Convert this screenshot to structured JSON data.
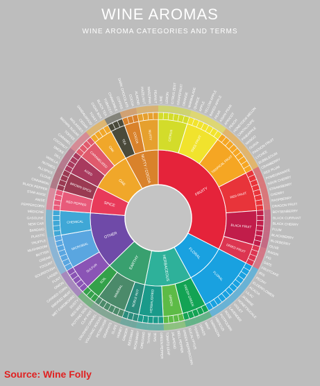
{
  "title": "WINE AROMAS",
  "subtitle": "WINE AROMA CATEGORIES AND TERMS",
  "source": "Source: Wine Folly",
  "categories": [
    {
      "name": "FRUITY",
      "color": "#e5233a",
      "subs": [
        {
          "name": "CITRUS",
          "color": "#d3dc2a",
          "terms": [
            "LIME",
            "LEMON",
            "CITRUS ZEST",
            "GRAPEFRUIT",
            "ORANGE",
            "MARMALADE"
          ]
        },
        {
          "name": "TREE FRUIT",
          "color": "#f1e32d",
          "terms": [
            "QUINCE",
            "APPLE",
            "YELLOW APPLE",
            "BAKED APPLE",
            "PEAR",
            "ASIAN PEAR",
            "APRICOT"
          ]
        },
        {
          "name": "TROPICAL FRUIT",
          "color": "#f5a623",
          "terms": [
            "PEACH",
            "HONEYDEW MELON",
            "CANTALOUPE",
            "PINEAPPLE",
            "MANGO",
            "GUAVA",
            "PASSION FRUIT",
            "LYCHEE",
            "BUBBLEGUM"
          ]
        },
        {
          "name": "RED FRUIT",
          "color": "#e8343a",
          "terms": [
            "CRANBERRY",
            "RED PLUM",
            "POMEGRANATE",
            "SOUR CHERRY",
            "STRAWBERRY",
            "CHERRY",
            "RASPBERRY",
            "DRAGON FRUIT"
          ]
        },
        {
          "name": "BLACK FRUIT",
          "color": "#c11d4a",
          "terms": [
            "BOYSENBERRY",
            "BLACK CURRANT",
            "BLACK CHERRY",
            "PLUM",
            "BLACKBERRY",
            "BLUEBERRY",
            "OLIVE"
          ]
        },
        {
          "name": "DRIED FRUIT",
          "color": "#dc3551",
          "terms": [
            "RAISIN",
            "FIG",
            "DATE",
            "FRUITCAKE"
          ]
        }
      ]
    },
    {
      "name": "FLORAL",
      "color": "#19a1e0",
      "subs": [
        {
          "name": "FLORAL",
          "color": "#19a1e0",
          "terms": [
            "IRIS",
            "PEONY",
            "ELDERFLOWER",
            "ACACIA",
            "LILAC",
            "JASMINE",
            "HONEYSUCKLE",
            "VIOLET",
            "LAVENDER",
            "ROSE",
            "POTPOURRI",
            "HIBISCUS"
          ]
        }
      ]
    },
    {
      "name": "HERBACEOUS",
      "color": "#2eb19a",
      "subs": [
        {
          "name": "FRESH GREEN",
          "color": "#13a354",
          "terms": [
            "TARRAGON",
            "MINT",
            "GRASS",
            "FENNEL",
            "EUCALYPTUS"
          ]
        },
        {
          "name": "GREEN",
          "color": "#5dbb46",
          "terms": [
            "GREEN PEPPERCORN",
            "BELL PEPPER",
            "JALAPENO",
            "TOMATO LEAF"
          ]
        },
        {
          "name": "HERBAL/DRIED",
          "color": "#1a9a8a",
          "terms": [
            "GREEN PEPPER",
            "SAGE",
            "THYME",
            "OREGANO",
            "ROSEMARY"
          ]
        }
      ]
    },
    {
      "name": "EARTHY",
      "color": "#39a06f",
      "subs": [
        {
          "name": "NOBLE ROT",
          "color": "#2a8c7c",
          "terms": [
            "BEESWAX",
            "GINGER",
            "HONEY"
          ]
        },
        {
          "name": "MINERAL",
          "color": "#4b8a6a",
          "terms": [
            "SLATE",
            "GRAPHITE",
            "PETRICHOR",
            "VOLCANIC ROCKS",
            "CRUSHED GRAVEL",
            "CLAY POT"
          ]
        },
        {
          "name": "SOIL",
          "color": "#34a14a",
          "terms": [
            "POTTING SOIL",
            "RED BEET",
            "DUSTY"
          ]
        }
      ]
    },
    {
      "name": "OTHER",
      "color": "#6f4aa8",
      "subs": [
        {
          "name": "SULFUR",
          "color": "#8a54b5",
          "terms": [
            "WET CARDBOARD",
            "SMOKED MEAT",
            "CANNED CORN",
            "ONION",
            "FLINT"
          ]
        },
        {
          "name": "MICROBIAL",
          "color": "#5aa6e0",
          "terms": [
            "LAGER",
            "SOURDOUGH",
            "YOGURT",
            "CREAM",
            "BUTTER",
            "MUSHROOM",
            "TRUFFLE"
          ]
        },
        {
          "name": "CHEMICAL",
          "color": "#3fa7d6",
          "terms": [
            "PLASTIC",
            "BANDAID",
            "NEW CAR",
            "GASOLINE",
            "MEDICINE"
          ]
        }
      ]
    },
    {
      "name": "SPICE",
      "color": "#e83a5a",
      "subs": [
        {
          "name": "RED PEPPER",
          "color": "#e85a7a",
          "terms": [
            "PEPPERCORN",
            "ANISE",
            "STAR ANISE",
            "BLACK PEPPER"
          ]
        },
        {
          "name": "BROWN SPICE",
          "color": "#9a3a52",
          "terms": [
            "CINNAMON",
            "CLOVE",
            "ALLSPICE",
            "NUTMEG"
          ]
        }
      ]
    },
    {
      "name": "OAK",
      "color": "#f0a72a",
      "subs": [
        {
          "name": "AGED",
          "color": "#a83a5e",
          "terms": [
            "VANILLA",
            "DILL",
            "SMOKE",
            "COCONUT"
          ]
        },
        {
          "name": "CARAMELIZED",
          "color": "#e05a6c",
          "terms": [
            "CARAMEL",
            "TOFFEE",
            "BROWN SUGAR",
            "MOLASSES"
          ]
        },
        {
          "name": "OAK",
          "color": "#f0a72a",
          "terms": [
            "CEDAR",
            "SANDALWOOD",
            "TOAST",
            "CIGAR BOX"
          ]
        }
      ]
    },
    {
      "name": "NUTTY / COCOA",
      "color": "#d9822b",
      "subs": [
        {
          "name": "TEA",
          "color": "#4a4a3a",
          "terms": [
            "BLACK TEA",
            "TOBACCO",
            "CHAMOMILE"
          ]
        },
        {
          "name": "COCOA",
          "color": "#d9822b",
          "terms": [
            "COFFEE",
            "DARK CHOCOLATE",
            "COCOA"
          ]
        },
        {
          "name": "NUTTY",
          "color": "#e6a02e",
          "terms": [
            "ALMOND",
            "HAZELNUT",
            "MARZIPAN",
            "PEANUT"
          ]
        }
      ]
    }
  ]
}
